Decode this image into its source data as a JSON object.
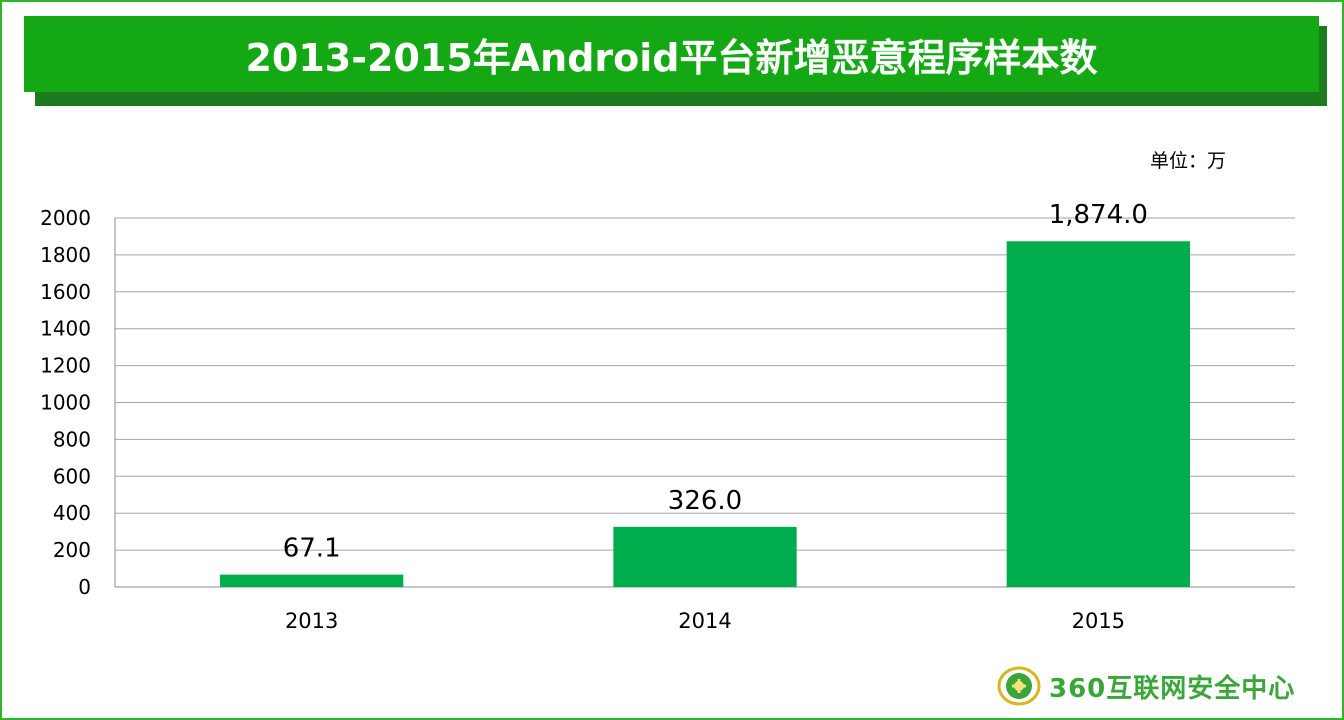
{
  "header": {
    "title": "2013-2015年Android平台新增恶意程序样本数"
  },
  "unit_label": "单位：万",
  "logo": {
    "text": "360互联网安全中心",
    "icon": "globe-emblem-icon"
  },
  "colors": {
    "bar": "#00ad4c",
    "title_bg": "#14a814",
    "frame": "#2db52d",
    "grid": "#a6a6a6"
  },
  "chart_data": {
    "type": "bar",
    "title": "2013-2015年Android平台新增恶意程序样本数",
    "categories": [
      "2013",
      "2014",
      "2015"
    ],
    "values": [
      67.1,
      326.0,
      1874.0
    ],
    "data_labels": [
      "67.1",
      "326.0",
      "1,874.0"
    ],
    "y_ticks": [
      0,
      200,
      400,
      600,
      800,
      1000,
      1200,
      1400,
      1600,
      1800,
      2000
    ],
    "ylim": [
      0,
      2000
    ],
    "grid": true,
    "xlabel": "",
    "ylabel": ""
  }
}
